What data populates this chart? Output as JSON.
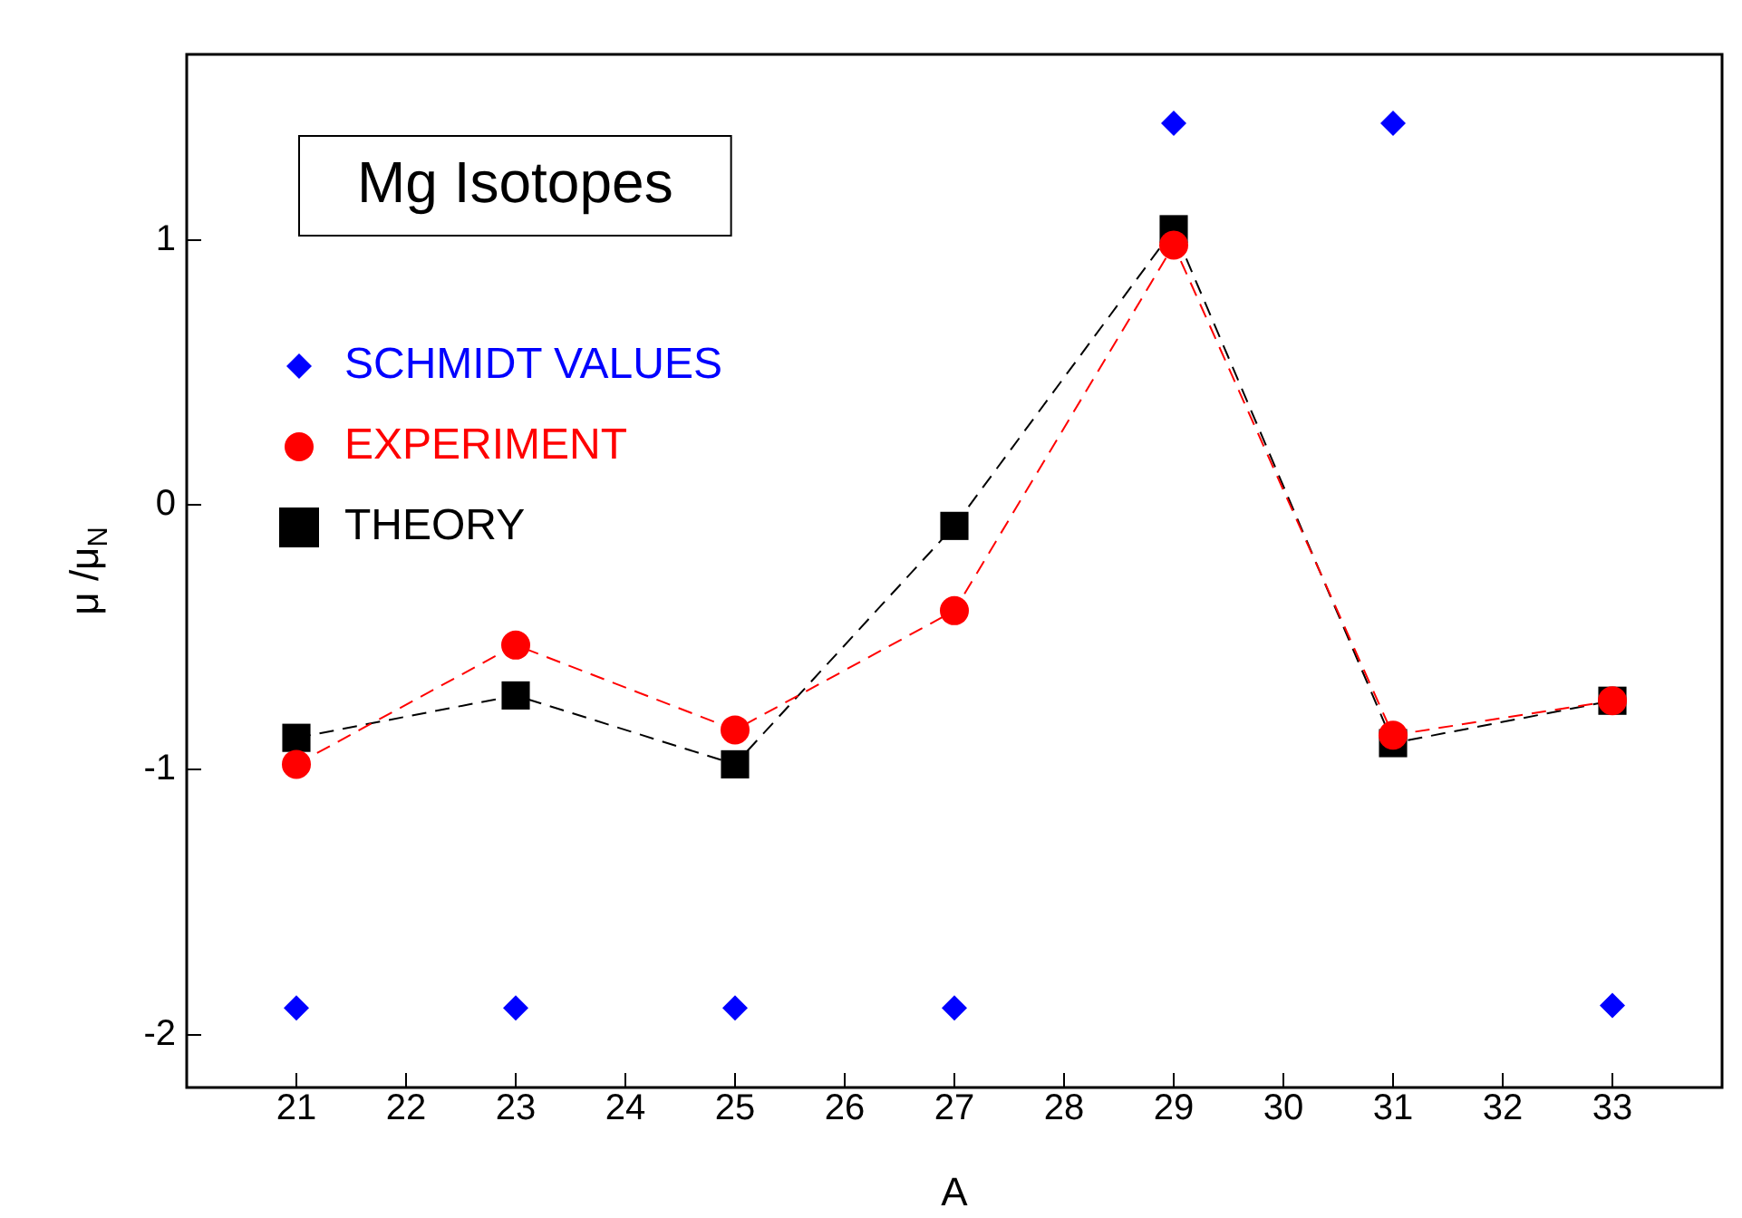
{
  "chart_data": {
    "type": "scatter",
    "title": "Mg Isotopes",
    "xlabel": "A",
    "ylabel": "μ /μ$_{N}$",
    "xlim": [
      20,
      34
    ],
    "xticks": [
      21,
      22,
      23,
      24,
      25,
      26,
      27,
      28,
      29,
      30,
      31,
      32,
      33
    ],
    "ylim": [
      -2.2,
      1.7
    ],
    "yticks": [
      -2,
      -1,
      0,
      1
    ],
    "grid": false,
    "legend": "top left",
    "series": [
      {
        "name": "SCHMIDT VALUES",
        "type": "scatter",
        "color": "#0000ff",
        "marker": "diamond",
        "x": [
          21,
          23,
          25,
          27,
          29,
          31,
          33
        ],
        "values": [
          -1.9,
          -1.9,
          -1.9,
          -1.9,
          1.44,
          1.44,
          -1.89
        ]
      },
      {
        "name": "EXPERIMENT",
        "type": "line",
        "color": "#ff0000",
        "marker": "circle",
        "line_style": "dashed",
        "x": [
          21,
          23,
          25,
          27,
          29,
          31,
          33
        ],
        "values": [
          -0.98,
          -0.53,
          -0.85,
          -0.4,
          0.98,
          -0.87,
          -0.74
        ]
      },
      {
        "name": "THEORY",
        "type": "line",
        "color": "#000000",
        "marker": "square",
        "line_style": "dashed",
        "x": [
          21,
          23,
          25,
          27,
          29,
          31,
          33
        ],
        "values": [
          -0.88,
          -0.72,
          -0.98,
          -0.08,
          1.04,
          -0.9,
          -0.74
        ]
      }
    ]
  }
}
